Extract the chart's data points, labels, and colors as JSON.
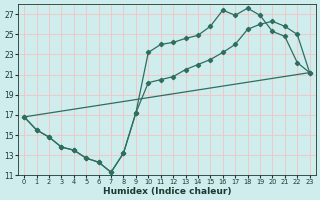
{
  "xlabel": "Humidex (Indice chaleur)",
  "bg_color": "#d0eded",
  "grid_color": "#f0c8c8",
  "line_color": "#2e6e60",
  "xlim": [
    -0.5,
    23.5
  ],
  "ylim": [
    11,
    28
  ],
  "xticks": [
    0,
    1,
    2,
    3,
    4,
    5,
    6,
    7,
    8,
    9,
    10,
    11,
    12,
    13,
    14,
    15,
    16,
    17,
    18,
    19,
    20,
    21,
    22,
    23
  ],
  "yticks": [
    11,
    13,
    15,
    17,
    19,
    21,
    23,
    25,
    27
  ],
  "line1_x": [
    0,
    1,
    2,
    3,
    4,
    5,
    6,
    7,
    8,
    9,
    10,
    11,
    12,
    13,
    14,
    15,
    16,
    17,
    18,
    19,
    20,
    21,
    22,
    23
  ],
  "line1_y": [
    16.8,
    15.5,
    14.8,
    13.8,
    13.5,
    12.7,
    12.3,
    11.3,
    13.2,
    17.2,
    23.2,
    24.0,
    24.2,
    24.6,
    24.9,
    25.8,
    27.4,
    26.9,
    27.6,
    26.9,
    25.3,
    24.8,
    22.2,
    21.2
  ],
  "line2_x": [
    0,
    1,
    2,
    3,
    4,
    5,
    6,
    7,
    8,
    9,
    10,
    11,
    12,
    13,
    14,
    15,
    16,
    17,
    18,
    19,
    20,
    21,
    22,
    23
  ],
  "line2_y": [
    16.8,
    15.5,
    14.8,
    13.8,
    13.5,
    12.7,
    12.3,
    11.3,
    13.2,
    17.2,
    20.2,
    20.5,
    20.8,
    21.5,
    22.0,
    22.5,
    23.2,
    24.0,
    25.5,
    26.0,
    26.3,
    25.8,
    25.0,
    21.2
  ],
  "line3_x": [
    0,
    23
  ],
  "line3_y": [
    16.8,
    21.2
  ]
}
